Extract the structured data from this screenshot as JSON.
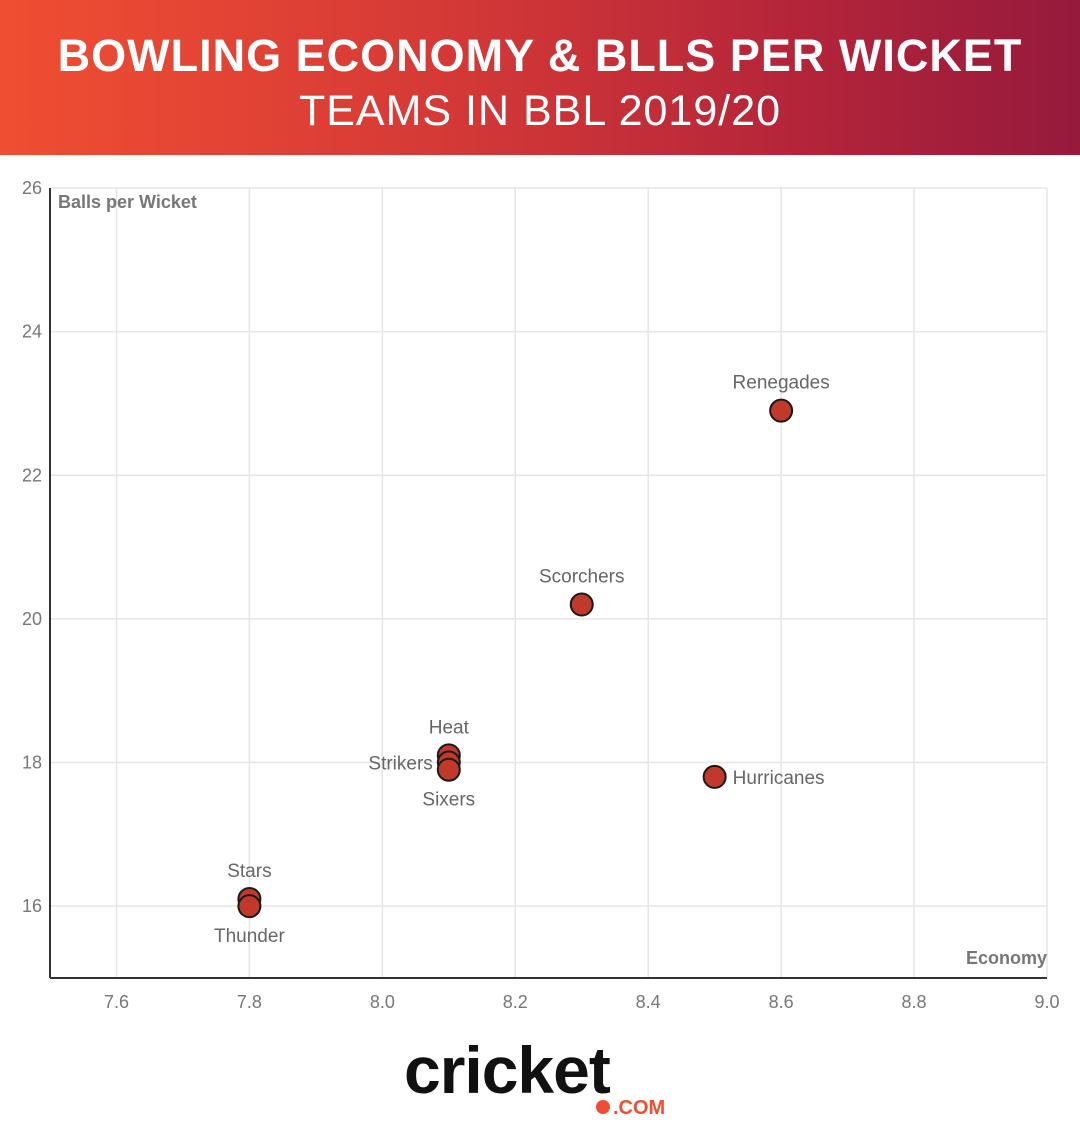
{
  "header": {
    "title": "BOWLING ECONOMY & BLLS PER WICKET",
    "subtitle": "TEAMS IN BBL 2019/20"
  },
  "colors": {
    "banner_start": "#f04e32",
    "banner_end": "#961a3c",
    "point_fill": "#c0392b",
    "point_stroke": "#1a1a1a",
    "grid": "#e6e6e6",
    "logo_accent": "#f04e32"
  },
  "chart_data": {
    "type": "scatter",
    "xlabel": "Economy",
    "ylabel": "Balls per Wicket",
    "xlim": [
      7.5,
      9.0
    ],
    "ylim": [
      15,
      26
    ],
    "xticks": [
      "7.6",
      "7.8",
      "8.0",
      "8.2",
      "8.4",
      "8.6",
      "8.8",
      "9.0"
    ],
    "yticks": [
      "16",
      "18",
      "20",
      "22",
      "24",
      "26"
    ],
    "grid": true,
    "points": [
      {
        "label": "Renegades",
        "x": 8.6,
        "y": 22.9,
        "label_pos": "above"
      },
      {
        "label": "Scorchers",
        "x": 8.3,
        "y": 20.2,
        "label_pos": "above"
      },
      {
        "label": "Heat",
        "x": 8.1,
        "y": 18.1,
        "label_pos": "above"
      },
      {
        "label": "Strikers",
        "x": 8.1,
        "y": 18.0,
        "label_pos": "left"
      },
      {
        "label": "Sixers",
        "x": 8.1,
        "y": 17.9,
        "label_pos": "below"
      },
      {
        "label": "Hurricanes",
        "x": 8.5,
        "y": 17.8,
        "label_pos": "right"
      },
      {
        "label": "Stars",
        "x": 7.8,
        "y": 16.1,
        "label_pos": "above"
      },
      {
        "label": "Thunder",
        "x": 7.8,
        "y": 16.0,
        "label_pos": "below"
      }
    ]
  },
  "footer": {
    "logo_word": "cricket",
    "logo_suffix": ".COM"
  }
}
